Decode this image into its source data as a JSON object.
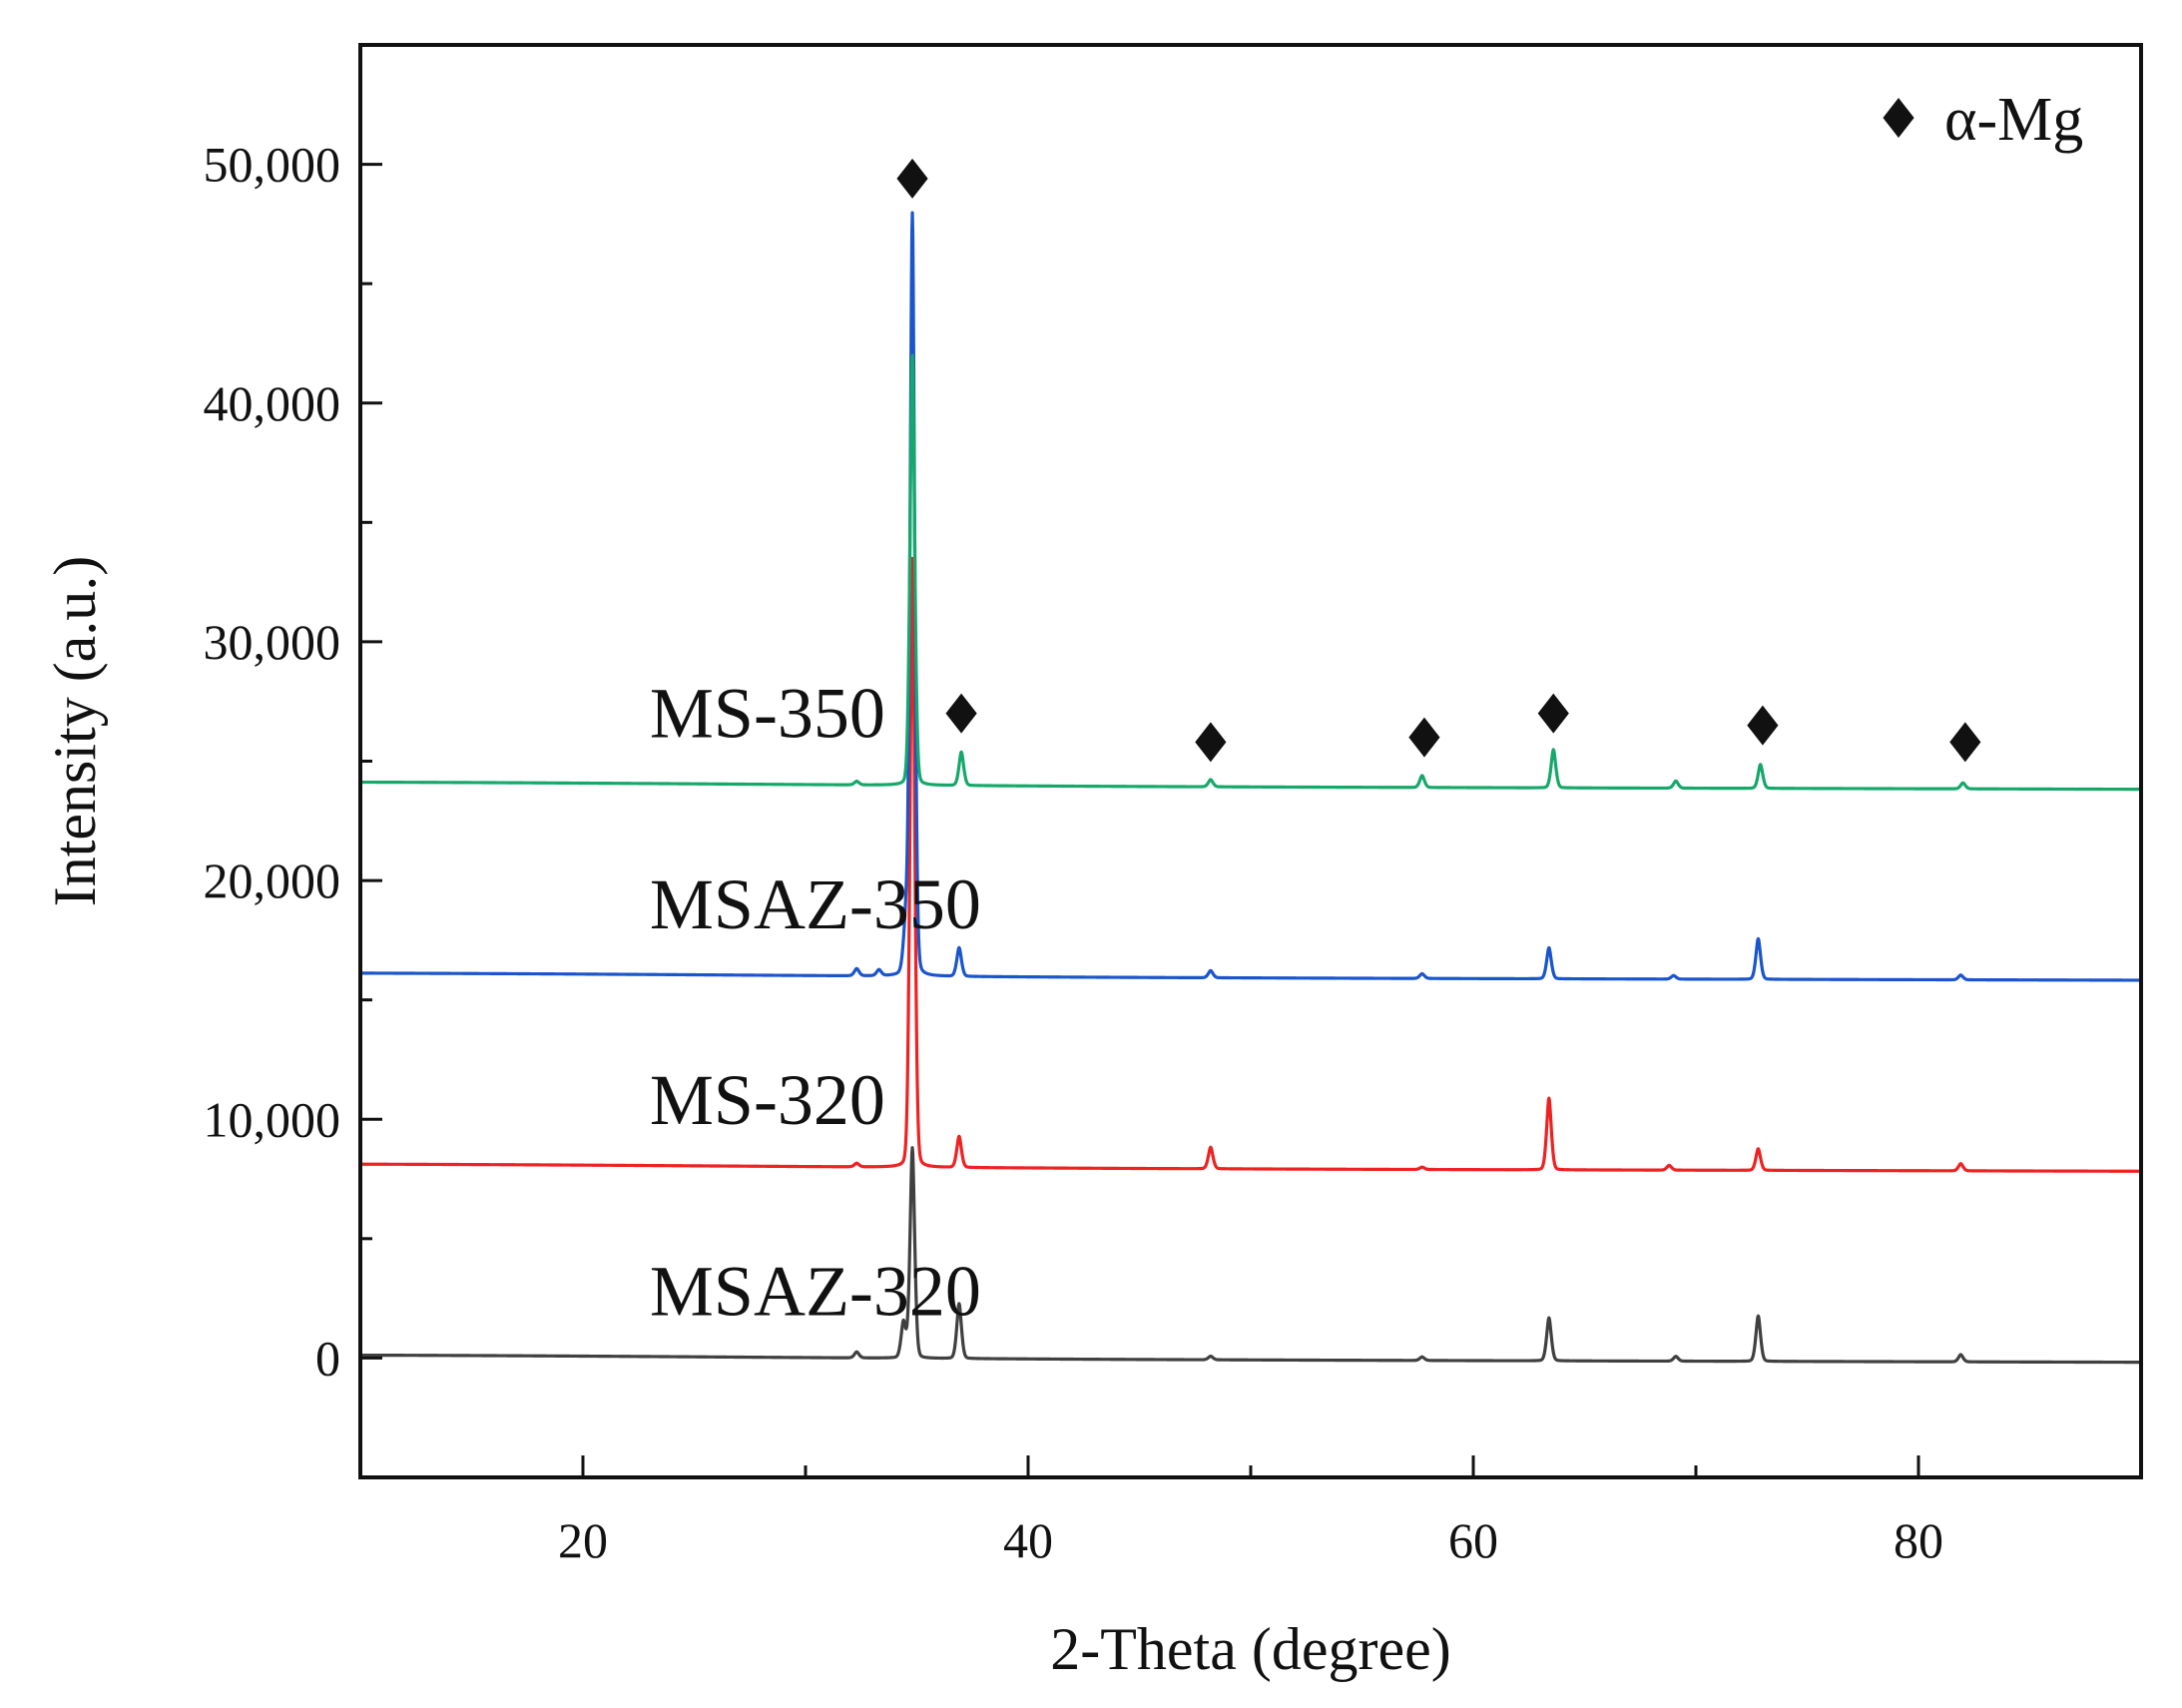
{
  "chart_data": {
    "type": "line",
    "title": "",
    "xlabel": "2-Theta (degree)",
    "ylabel": "Intensity (a.u.)",
    "xlim": [
      10,
      90
    ],
    "ylim": [
      -5000,
      55000
    ],
    "x_major_ticks": [
      20,
      40,
      60,
      80
    ],
    "x_minor_ticks": [
      30,
      50,
      70
    ],
    "y_major_ticks": [
      0,
      10000,
      20000,
      30000,
      40000,
      50000
    ],
    "y_tick_labels": [
      "0",
      "10,000",
      "20,000",
      "30,000",
      "40,000",
      "50,000"
    ],
    "x_tick_labels": [
      "20",
      "40",
      "60",
      "80"
    ],
    "grid": false,
    "legend": {
      "position": "top-right",
      "marker": "diamond",
      "label": "α-Mg"
    },
    "series": [
      {
        "name": "MSAZ-320",
        "color": "#404040",
        "baseline": 0,
        "peaks": [
          [
            32.3,
            250
          ],
          [
            34.4,
            1500
          ],
          [
            34.8,
            8800
          ],
          [
            36.9,
            2300
          ],
          [
            48.2,
            150
          ],
          [
            57.7,
            150
          ],
          [
            63.4,
            1800
          ],
          [
            69.1,
            200
          ],
          [
            72.8,
            1900
          ],
          [
            81.9,
            300
          ]
        ]
      },
      {
        "name": "MS-320",
        "color": "#ee2222",
        "baseline": 8000,
        "peaks": [
          [
            32.3,
            150
          ],
          [
            34.8,
            25500
          ],
          [
            36.9,
            1300
          ],
          [
            48.2,
            900
          ],
          [
            57.7,
            100
          ],
          [
            63.4,
            3000
          ],
          [
            68.8,
            200
          ],
          [
            72.8,
            900
          ],
          [
            81.9,
            300
          ]
        ]
      },
      {
        "name": "MSAZ-350",
        "color": "#1a55cc",
        "baseline": 16000,
        "peaks": [
          [
            32.3,
            300
          ],
          [
            33.3,
            250
          ],
          [
            34.5,
            2000
          ],
          [
            34.8,
            31900
          ],
          [
            36.9,
            1200
          ],
          [
            48.2,
            300
          ],
          [
            57.7,
            200
          ],
          [
            63.4,
            1300
          ],
          [
            69.0,
            150
          ],
          [
            72.8,
            1700
          ],
          [
            81.9,
            200
          ]
        ]
      },
      {
        "name": "MS-350",
        "color": "#16a86a",
        "baseline": 24000,
        "peaks": [
          [
            32.3,
            150
          ],
          [
            34.8,
            18000
          ],
          [
            37.0,
            1400
          ],
          [
            48.2,
            300
          ],
          [
            57.7,
            500
          ],
          [
            63.6,
            1600
          ],
          [
            69.1,
            300
          ],
          [
            72.9,
            1000
          ],
          [
            82.0,
            250
          ]
        ]
      }
    ],
    "annotations": [
      {
        "label": "α-Mg",
        "marker": "diamond",
        "x": 34.8,
        "y": 49400
      },
      {
        "label": "α-Mg",
        "marker": "diamond",
        "x": 37.0,
        "y": 27000
      },
      {
        "label": "α-Mg",
        "marker": "diamond",
        "x": 48.2,
        "y": 25800
      },
      {
        "label": "α-Mg",
        "marker": "diamond",
        "x": 57.8,
        "y": 26000
      },
      {
        "label": "α-Mg",
        "marker": "diamond",
        "x": 63.6,
        "y": 27000
      },
      {
        "label": "α-Mg",
        "marker": "diamond",
        "x": 73.0,
        "y": 26500
      },
      {
        "label": "α-Mg",
        "marker": "diamond",
        "x": 82.1,
        "y": 25800
      }
    ],
    "series_labels": [
      {
        "text": "MS-350",
        "x": 23,
        "y": 26000
      },
      {
        "text": "MSAZ-350",
        "x": 23,
        "y": 18000
      },
      {
        "text": "MS-320",
        "x": 23,
        "y": 9800
      },
      {
        "text": "MSAZ-320",
        "x": 23,
        "y": 1800
      }
    ]
  }
}
